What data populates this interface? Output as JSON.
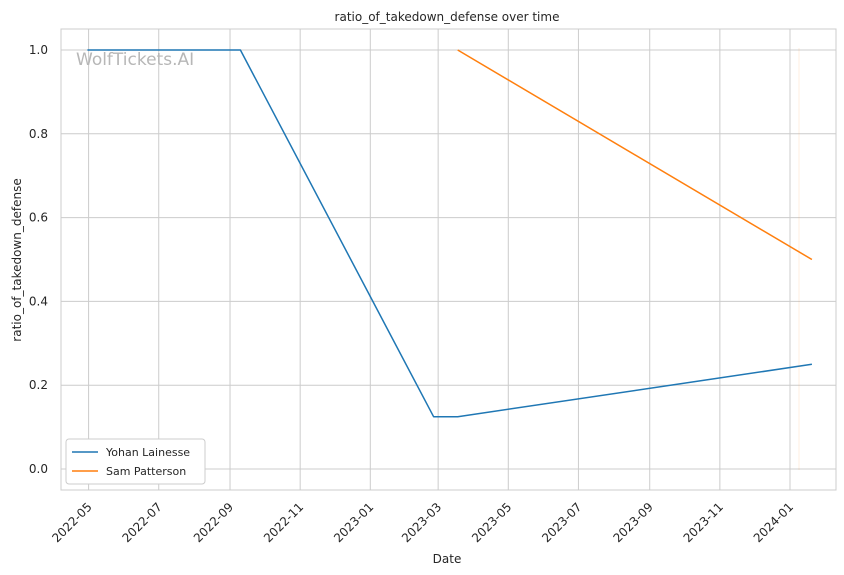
{
  "chart_data": {
    "type": "line",
    "title": "ratio_of_takedown_defense over time",
    "xlabel": "Date",
    "ylabel": "ratio_of_takedown_defense",
    "watermark": "WolfTickets.AI",
    "x_ticks": [
      "2022-05",
      "2022-07",
      "2022-09",
      "2022-11",
      "2023-01",
      "2023-03",
      "2023-05",
      "2023-07",
      "2023-09",
      "2023-11",
      "2024-01"
    ],
    "y_ticks": [
      "0.0",
      "0.2",
      "0.4",
      "0.6",
      "0.8",
      "1.0"
    ],
    "ylim": [
      -0.05,
      1.05
    ],
    "xlim": [
      "2022-04-07",
      "2024-02-10"
    ],
    "grid": true,
    "legend_position": "lower-left",
    "series": [
      {
        "name": "Yohan Lainesse",
        "color": "#1f77b4",
        "points": [
          {
            "x": "2022-04-30",
            "y": 1.0
          },
          {
            "x": "2022-09-10",
            "y": 1.0
          },
          {
            "x": "2023-02-25",
            "y": 0.125
          },
          {
            "x": "2023-03-18",
            "y": 0.125
          },
          {
            "x": "2024-01-20",
            "y": 0.25
          }
        ]
      },
      {
        "name": "Sam Patterson",
        "color": "#ff7f0e",
        "points": [
          {
            "x": "2023-03-18",
            "y": 1.0
          },
          {
            "x": "2024-01-20",
            "y": 0.5
          }
        ]
      }
    ]
  }
}
